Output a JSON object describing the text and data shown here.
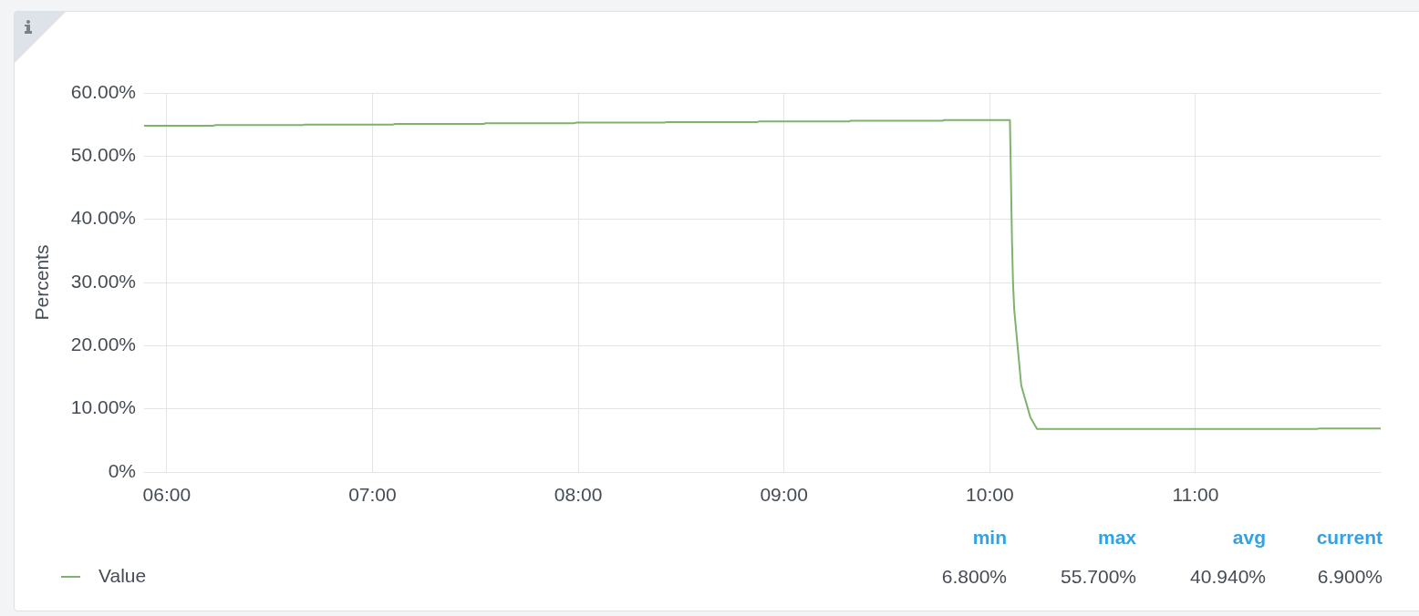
{
  "chart_data": {
    "type": "line",
    "ylabel": "Percents",
    "xlim": [
      5.89,
      11.9
    ],
    "xticks": [
      {
        "value": 6,
        "label": "06:00"
      },
      {
        "value": 7,
        "label": "07:00"
      },
      {
        "value": 8,
        "label": "08:00"
      },
      {
        "value": 9,
        "label": "09:00"
      },
      {
        "value": 10,
        "label": "10:00"
      },
      {
        "value": 11,
        "label": "11:00"
      }
    ],
    "ylim": [
      0,
      60
    ],
    "yticks": [
      {
        "value": 0,
        "label": "0%"
      },
      {
        "value": 10,
        "label": "10.00%"
      },
      {
        "value": 20,
        "label": "20.00%"
      },
      {
        "value": 30,
        "label": "30.00%"
      },
      {
        "value": 40,
        "label": "40.00%"
      },
      {
        "value": 50,
        "label": "50.00%"
      },
      {
        "value": 60,
        "label": "60.00%"
      }
    ],
    "series": [
      {
        "name": "Value",
        "color": "#7eb26d",
        "x": [
          5.89,
          6.225,
          6.235,
          6.66,
          6.67,
          7.1,
          7.11,
          7.54,
          7.55,
          7.98,
          7.99,
          8.42,
          8.43,
          8.87,
          8.88,
          9.315,
          9.325,
          9.77,
          9.78,
          10.098,
          10.101,
          10.108,
          10.113,
          10.119,
          10.134,
          10.153,
          10.198,
          10.23,
          11.59,
          11.6,
          11.9
        ],
        "values": [
          54.8,
          54.8,
          54.9,
          54.9,
          55.0,
          55.0,
          55.1,
          55.1,
          55.2,
          55.2,
          55.3,
          55.3,
          55.4,
          55.4,
          55.5,
          55.5,
          55.6,
          55.6,
          55.7,
          55.7,
          50.2,
          36.7,
          30.0,
          25.7,
          20.4,
          13.7,
          8.6,
          6.8,
          6.8,
          6.9,
          6.9
        ]
      }
    ],
    "grid": true,
    "legend": "bottom left",
    "marker": "none",
    "line_style": "solid",
    "annotations": [
      "min",
      "max",
      "avg",
      "current",
      "6.800%",
      "55.700%",
      "40.940%",
      "6.900%"
    ]
  }
}
